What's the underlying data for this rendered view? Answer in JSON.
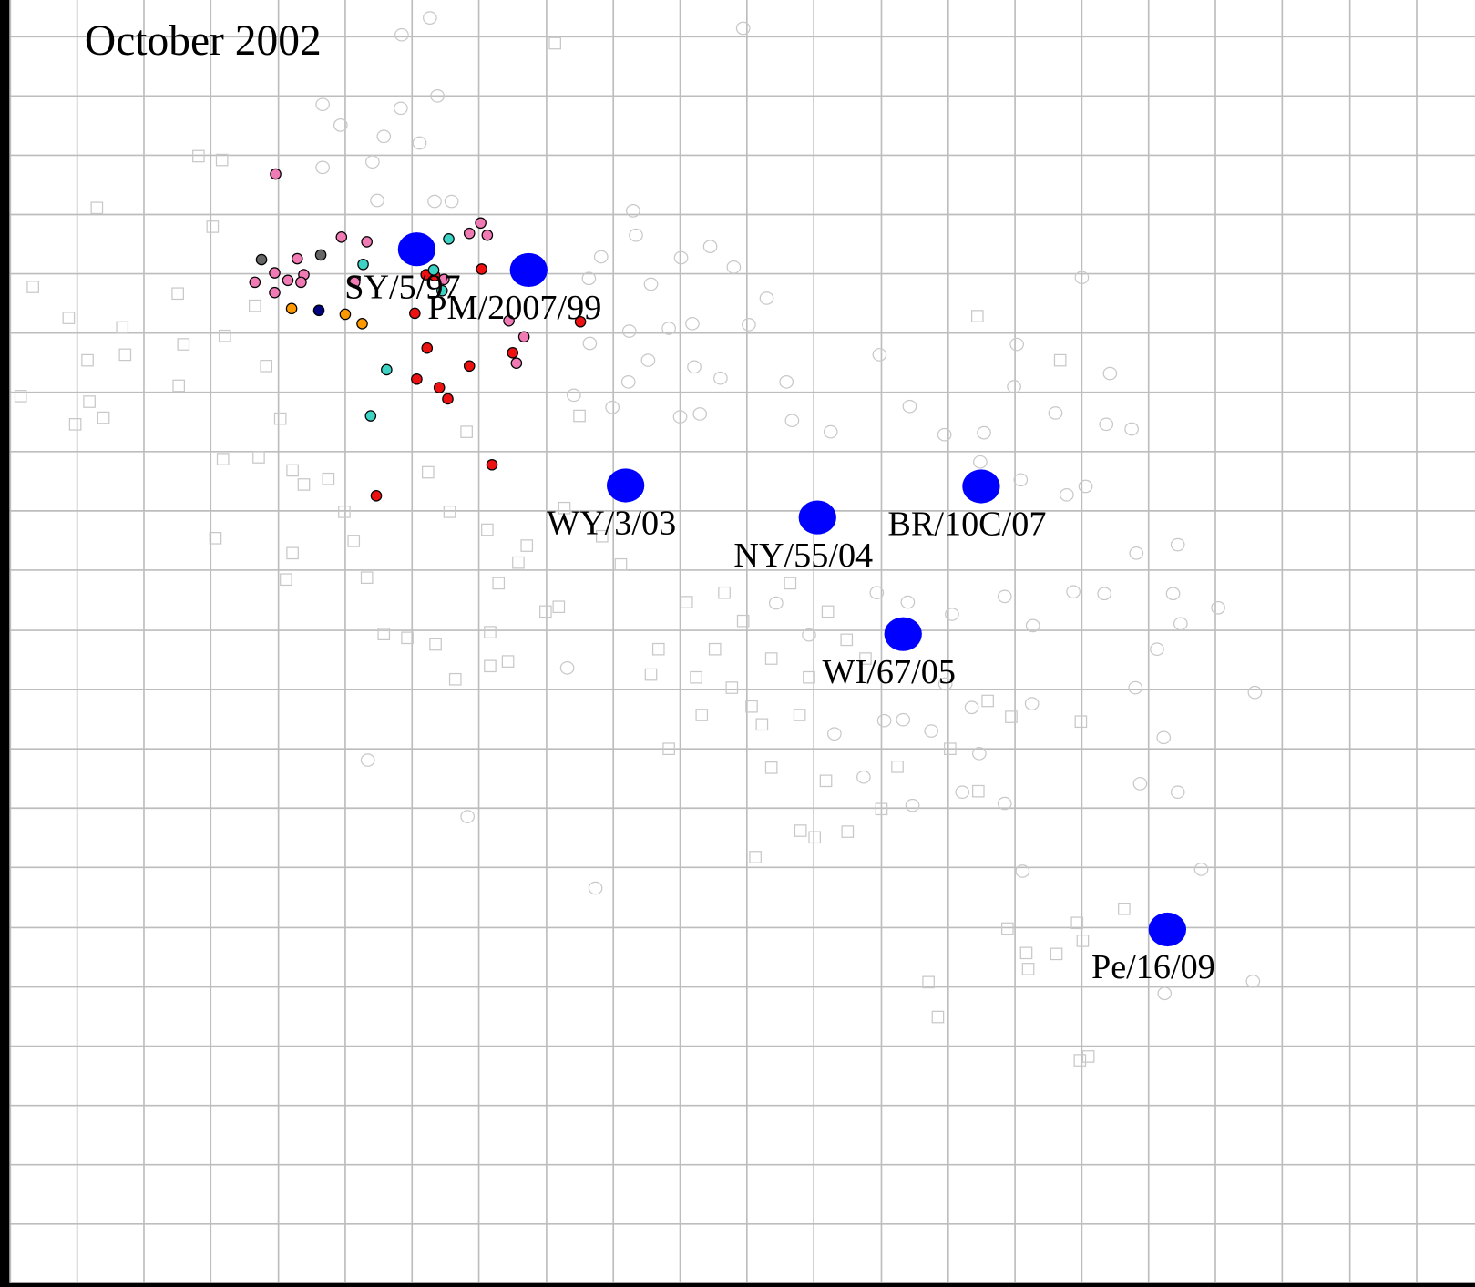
{
  "chart_data": {
    "type": "scatter",
    "title": "October 2002",
    "xlim": [
      0,
      1568
    ],
    "ylim": [
      1368,
      0
    ],
    "xticks": [
      11,
      82,
      153,
      224,
      296,
      367,
      438,
      509,
      581,
      652,
      723,
      794,
      865,
      937,
      1008,
      1079,
      1150,
      1221,
      1292,
      1363,
      1435,
      1506
    ],
    "yticks": [
      39,
      102,
      165,
      228,
      291,
      354,
      417,
      480,
      543,
      606,
      670,
      733,
      796,
      859,
      922,
      986,
      1049,
      1112,
      1175,
      1238,
      1301,
      1364
    ],
    "grid": true,
    "background_circles": {
      "color": "#c8c8c8",
      "x": [
        457,
        790,
        427,
        465,
        343,
        426,
        362,
        408,
        446,
        343,
        396,
        401,
        462,
        480,
        673,
        676,
        639,
        724,
        755,
        780,
        626,
        692,
        815,
        796,
        736,
        669,
        711,
        627,
        689,
        738,
        766,
        836,
        668,
        610,
        651,
        723,
        744,
        842,
        883,
        935,
        967,
        1004,
        1046,
        1078,
        1122,
        1176,
        1203,
        1081,
        1150,
        1180,
        1042,
        1085,
        1154,
        1134,
        1208,
        1252,
        1141,
        1174,
        1247,
        1295,
        1255,
        1230,
        1207,
        1334,
        1237,
        1212,
        1252,
        1277,
        1087,
        1332,
        1238,
        603,
        497,
        391,
        633,
        887,
        918,
        970,
        1023,
        1068,
        1041,
        1033,
        990,
        960,
        1012,
        1068,
        1098,
        1097,
        1005,
        940,
        860,
        825,
        932,
        965
      ],
      "y": [
        19,
        30,
        37,
        102,
        111,
        115,
        133,
        145,
        152,
        178,
        172,
        213,
        214,
        214,
        224,
        250,
        273,
        274,
        262,
        284,
        296,
        302,
        317,
        345,
        344,
        352,
        349,
        365,
        383,
        390,
        402,
        406,
        406,
        420,
        433,
        443,
        440,
        447,
        459,
        377,
        432,
        462,
        460,
        411,
        439,
        451,
        456,
        366,
        295,
        397,
        491,
        510,
        517,
        526,
        588,
        579,
        629,
        631,
        631,
        646,
        663,
        690,
        731,
        736,
        784,
        833,
        842,
        924,
        926,
        1043,
        1056,
        710,
        868,
        808,
        944,
        780,
        826,
        856,
        842,
        854,
        801,
        752,
        777,
        765,
        653,
        634,
        665,
        748,
        727,
        766,
        675,
        641,
        630,
        640
      ]
    },
    "background_squares": {
      "color": "#c8c8c8",
      "x": [
        590,
        211,
        236,
        103,
        226,
        35,
        73,
        130,
        189,
        93,
        133,
        195,
        239,
        271,
        283,
        190,
        22,
        95,
        80,
        110,
        298,
        237,
        275,
        311,
        349,
        366,
        323,
        229,
        311,
        304,
        376,
        390,
        408,
        433,
        463,
        484,
        521,
        540,
        521,
        496,
        455,
        478,
        518,
        551,
        594,
        616,
        692,
        711,
        746,
        778,
        799,
        820,
        803,
        851,
        866,
        901,
        878,
        937,
        954,
        1010,
        1040,
        1050,
        1075,
        1149,
        1039,
        1127,
        1151,
        1145,
        1195,
        1071,
        1091,
        1093,
        1123,
        987,
        997,
        1148,
        1157,
        730,
        760,
        790,
        820,
        860,
        880,
        900,
        920,
        840,
        770,
        700,
        740,
        810,
        850,
        640,
        660,
        600,
        560,
        530,
        580
      ],
      "y": [
        46,
        166,
        170,
        221,
        241,
        305,
        338,
        348,
        312,
        383,
        377,
        366,
        357,
        325,
        389,
        410,
        421,
        427,
        451,
        444,
        445,
        488,
        486,
        500,
        509,
        544,
        515,
        572,
        588,
        616,
        575,
        614,
        674,
        678,
        685,
        722,
        708,
        703,
        672,
        459,
        502,
        544,
        563,
        598,
        645,
        442,
        717,
        796,
        760,
        731,
        751,
        816,
        911,
        883,
        890,
        884,
        830,
        860,
        815,
        796,
        841,
        745,
        762,
        767,
        336,
        383,
        1000,
        981,
        966,
        987,
        1013,
        1030,
        1014,
        1044,
        1081,
        1127,
        1123,
        640,
        690,
        660,
        700,
        720,
        650,
        680,
        700,
        620,
        630,
        690,
        720,
        770,
        760,
        570,
        600,
        540,
        580,
        620,
        650
      ]
    },
    "groups": [
      {
        "color": "#f07ab4",
        "x": [
          293,
          511,
          499,
          518,
          363,
          390,
          316,
          292,
          323,
          306,
          320,
          271,
          292,
          377,
          541,
          557,
          549,
          472
        ],
        "y": [
          185,
          237,
          248,
          250,
          252,
          257,
          275,
          290,
          292,
          298,
          300,
          300,
          311,
          300,
          341,
          358,
          386,
          297
        ]
      },
      {
        "color": "#ee1111",
        "x": [
          512,
          617,
          441,
          454,
          545,
          499,
          443,
          467,
          476,
          523,
          400,
          462,
          453
        ],
        "y": [
          286,
          342,
          333,
          370,
          375,
          389,
          403,
          412,
          424,
          494,
          527,
          293,
          292
        ]
      },
      {
        "color": "#3cd2c4",
        "x": [
          477,
          386,
          461,
          470,
          411,
          394
        ],
        "y": [
          254,
          281,
          287,
          309,
          393,
          442
        ]
      },
      {
        "color": "#666666",
        "x": [
          278,
          341
        ],
        "y": [
          276,
          271
        ]
      },
      {
        "color": "#ff9900",
        "x": [
          310,
          367,
          385
        ],
        "y": [
          328,
          334,
          344
        ]
      },
      {
        "color": "#000080",
        "x": [
          339
        ],
        "y": [
          330
        ]
      }
    ],
    "reference_strains": {
      "color": "#0000ff",
      "labels": [
        "SY/5/97",
        "PM/2007/99",
        "WY/3/03",
        "NY/55/04",
        "BR/10C/07",
        "WI/67/05",
        "Pe/16/09"
      ],
      "x": [
        443,
        562,
        665,
        869,
        1043,
        960,
        1241
      ],
      "y": [
        265,
        287,
        516,
        550,
        517,
        674,
        988
      ]
    }
  }
}
